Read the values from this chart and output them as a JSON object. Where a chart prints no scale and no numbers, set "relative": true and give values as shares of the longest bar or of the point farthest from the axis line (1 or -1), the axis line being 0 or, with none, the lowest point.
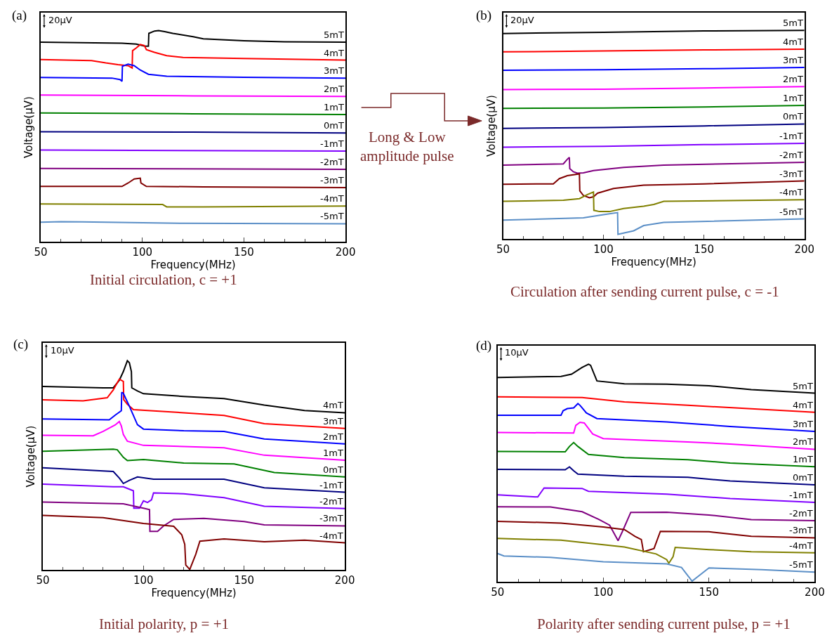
{
  "chart_data": [
    {
      "type": "line",
      "relative": true,
      "xlabel": "Frequency(MHz)",
      "ylabel": "Voltage(µV)",
      "xlim": [
        50,
        200
      ],
      "xticks": [
        50,
        100,
        150,
        200
      ],
      "annotations": [
        "(a)",
        "20µV",
        "Initial circulation, c = +1",
        "Long & Low\namplitude pulse"
      ],
      "series": [
        {
          "name": "5mT",
          "color": "#000000",
          "x": [
            50,
            90,
            97,
            101,
            103,
            103.2,
            106,
            108,
            111,
            115,
            125,
            130,
            150,
            170,
            200
          ],
          "values": [
            0.945,
            0.94,
            0.936,
            0.927,
            0.926,
            0.987,
            0.998,
            1.0,
            0.995,
            0.987,
            0.971,
            0.961,
            0.952,
            0.947,
            0.945
          ]
        },
        {
          "name": "4mT",
          "color": "#ff0000",
          "x": [
            50,
            75,
            82,
            88,
            93,
            95,
            95.2,
            97,
            99,
            101,
            102,
            106,
            112,
            120,
            150,
            200
          ],
          "values": [
            0.863,
            0.858,
            0.847,
            0.839,
            0.834,
            0.823,
            0.905,
            0.918,
            0.934,
            0.929,
            0.91,
            0.897,
            0.881,
            0.873,
            0.868,
            0.86
          ]
        },
        {
          "name": "3mT",
          "color": "#0000ff",
          "x": [
            50,
            85,
            89,
            90,
            90.2,
            93,
            96,
            99,
            103,
            112,
            150,
            200
          ],
          "values": [
            0.778,
            0.775,
            0.768,
            0.76,
            0.831,
            0.841,
            0.834,
            0.813,
            0.793,
            0.784,
            0.779,
            0.775
          ]
        },
        {
          "name": "2mT",
          "color": "#ff00ff",
          "x": [
            50,
            125,
            200
          ],
          "values": [
            0.695,
            0.691,
            0.688
          ]
        },
        {
          "name": "1mT",
          "color": "#008000",
          "x": [
            50,
            125,
            200
          ],
          "values": [
            0.61,
            0.606,
            0.602
          ]
        },
        {
          "name": "0mT",
          "color": "#000080",
          "x": [
            50,
            125,
            200
          ],
          "values": [
            0.521,
            0.519,
            0.515
          ]
        },
        {
          "name": "-1mT",
          "color": "#8000ff",
          "x": [
            50,
            200
          ],
          "values": [
            0.434,
            0.429
          ]
        },
        {
          "name": "-2mT",
          "color": "#800080",
          "x": [
            50,
            200
          ],
          "values": [
            0.347,
            0.343
          ]
        },
        {
          "name": "-3mT",
          "color": "#800000",
          "x": [
            50,
            90,
            93,
            96,
            99,
            99.3,
            102,
            130,
            200
          ],
          "values": [
            0.262,
            0.262,
            0.278,
            0.297,
            0.301,
            0.278,
            0.262,
            0.26,
            0.256
          ]
        },
        {
          "name": "-4mT",
          "color": "#808000",
          "x": [
            50,
            110,
            112,
            130,
            200
          ],
          "values": [
            0.179,
            0.176,
            0.165,
            0.165,
            0.169
          ]
        },
        {
          "name": "-5mT",
          "color": "#5b8fc7",
          "x": [
            50,
            60,
            70,
            120,
            200
          ],
          "values": [
            0.092,
            0.095,
            0.094,
            0.087,
            0.085
          ]
        }
      ]
    },
    {
      "type": "line",
      "relative": true,
      "xlabel": "Frequency(MHz)",
      "ylabel": "Voltage(µV)",
      "xlim": [
        50,
        200
      ],
      "xticks": [
        50,
        100,
        150,
        200
      ],
      "annotations": [
        "(b)",
        "20µV",
        "Circulation after sending current pulse, c = -1"
      ],
      "series": [
        {
          "name": "5mT",
          "color": "#000000",
          "x": [
            50,
            100,
            150,
            200
          ],
          "values": [
            0.985,
            0.991,
            0.997,
            1.0
          ]
        },
        {
          "name": "4mT",
          "color": "#ff0000",
          "x": [
            50,
            100,
            150,
            200
          ],
          "values": [
            0.897,
            0.901,
            0.906,
            0.91
          ]
        },
        {
          "name": "3mT",
          "color": "#0000ff",
          "x": [
            50,
            100,
            150,
            200
          ],
          "values": [
            0.809,
            0.811,
            0.816,
            0.822
          ]
        },
        {
          "name": "2mT",
          "color": "#ff00ff",
          "x": [
            50,
            100,
            150,
            200
          ],
          "values": [
            0.716,
            0.718,
            0.724,
            0.73
          ]
        },
        {
          "name": "1mT",
          "color": "#008000",
          "x": [
            50,
            100,
            150,
            200
          ],
          "values": [
            0.626,
            0.628,
            0.633,
            0.64
          ]
        },
        {
          "name": "0mT",
          "color": "#000080",
          "x": [
            50,
            100,
            150,
            200
          ],
          "values": [
            0.53,
            0.534,
            0.542,
            0.551
          ]
        },
        {
          "name": "-1mT",
          "color": "#8000ff",
          "x": [
            50,
            100,
            150,
            200
          ],
          "values": [
            0.44,
            0.444,
            0.452,
            0.458
          ]
        },
        {
          "name": "-2mT",
          "color": "#800080",
          "x": [
            50,
            80,
            82,
            83,
            83.2,
            85,
            87,
            90,
            95,
            110,
            130,
            200
          ],
          "values": [
            0.354,
            0.36,
            0.382,
            0.391,
            0.337,
            0.322,
            0.315,
            0.317,
            0.328,
            0.343,
            0.354,
            0.367
          ]
        },
        {
          "name": "-3mT",
          "color": "#800000",
          "x": [
            50,
            75,
            78,
            82,
            88,
            88.2,
            90,
            93,
            95,
            97,
            105,
            120,
            150,
            200
          ],
          "values": [
            0.262,
            0.264,
            0.289,
            0.303,
            0.312,
            0.23,
            0.208,
            0.197,
            0.202,
            0.219,
            0.242,
            0.258,
            0.264,
            0.278
          ]
        },
        {
          "name": "-4mT",
          "color": "#808000",
          "x": [
            50,
            80,
            88,
            92,
            95,
            95.2,
            98,
            103,
            110,
            120,
            125,
            130,
            200
          ],
          "values": [
            0.18,
            0.185,
            0.193,
            0.213,
            0.225,
            0.137,
            0.131,
            0.131,
            0.146,
            0.157,
            0.165,
            0.18,
            0.188
          ]
        },
        {
          "name": "-5mT",
          "color": "#5b8fc7",
          "x": [
            50,
            90,
            100,
            107,
            107.2,
            115,
            120,
            130,
            200
          ],
          "values": [
            0.09,
            0.101,
            0.116,
            0.126,
            0.022,
            0.039,
            0.064,
            0.079,
            0.096
          ]
        }
      ]
    },
    {
      "type": "line",
      "relative": true,
      "xlabel": "Frequency(MHz)",
      "ylabel": "Voltage(µV)",
      "xlim": [
        50,
        200
      ],
      "xticks": [
        50,
        100,
        150,
        200
      ],
      "annotations": [
        "(c)",
        "10µV",
        "Initial polarity, p = +1"
      ],
      "series": [
        {
          "name": "4mT",
          "color": "#000000",
          "x": [
            50,
            80,
            85,
            88,
            90,
            92,
            93,
            94,
            94.2,
            97,
            100,
            120,
            140,
            160,
            180,
            200
          ],
          "values": [
            0.877,
            0.87,
            0.87,
            0.906,
            0.948,
            1.0,
            0.99,
            0.948,
            0.87,
            0.855,
            0.842,
            0.829,
            0.819,
            0.788,
            0.762,
            0.751
          ]
        },
        {
          "name": "3mT",
          "color": "#ff0000",
          "x": [
            50,
            70,
            82,
            85,
            88,
            90,
            90.2,
            92,
            95,
            120,
            140,
            160,
            200
          ],
          "values": [
            0.813,
            0.808,
            0.823,
            0.86,
            0.912,
            0.901,
            0.813,
            0.792,
            0.766,
            0.751,
            0.738,
            0.699,
            0.676
          ]
        },
        {
          "name": "2mT",
          "color": "#0000ff",
          "x": [
            50,
            83,
            86,
            89,
            89.2,
            90,
            93,
            97,
            100,
            120,
            140,
            160,
            200
          ],
          "values": [
            0.721,
            0.717,
            0.74,
            0.761,
            0.849,
            0.844,
            0.782,
            0.694,
            0.673,
            0.665,
            0.662,
            0.626,
            0.602
          ]
        },
        {
          "name": "1mT",
          "color": "#ff00ff",
          "x": [
            50,
            75,
            80,
            86,
            88,
            89,
            90,
            92,
            100,
            140,
            160,
            200
          ],
          "values": [
            0.643,
            0.641,
            0.662,
            0.693,
            0.709,
            0.688,
            0.647,
            0.615,
            0.595,
            0.584,
            0.548,
            0.524
          ]
        },
        {
          "name": "0mT",
          "color": "#008000",
          "x": [
            50,
            85,
            87,
            90,
            92,
            100,
            120,
            145,
            165,
            200
          ],
          "values": [
            0.567,
            0.577,
            0.574,
            0.538,
            0.522,
            0.527,
            0.511,
            0.506,
            0.465,
            0.444
          ]
        },
        {
          "name": "-1mT",
          "color": "#000080",
          "x": [
            50,
            85,
            88,
            90,
            93,
            97,
            105,
            140,
            160,
            200
          ],
          "values": [
            0.488,
            0.47,
            0.439,
            0.413,
            0.428,
            0.444,
            0.433,
            0.433,
            0.392,
            0.371
          ]
        },
        {
          "name": "-2mT",
          "color": "#8000ff",
          "x": [
            50,
            85,
            90,
            95,
            95.2,
            98,
            100,
            102,
            104,
            105,
            120,
            140,
            160,
            200
          ],
          "values": [
            0.41,
            0.397,
            0.397,
            0.378,
            0.295,
            0.295,
            0.33,
            0.322,
            0.335,
            0.368,
            0.364,
            0.345,
            0.304,
            0.293
          ]
        },
        {
          "name": "-3mT",
          "color": "#800080",
          "x": [
            50,
            90,
            100,
            103,
            103.2,
            107,
            110,
            115,
            130,
            150,
            160,
            200
          ],
          "values": [
            0.324,
            0.316,
            0.295,
            0.288,
            0.184,
            0.184,
            0.21,
            0.241,
            0.246,
            0.231,
            0.215,
            0.21
          ]
        },
        {
          "name": "-4mT",
          "color": "#800000",
          "x": [
            50,
            80,
            100,
            115,
            119,
            120.5,
            121,
            123,
            126,
            128,
            140,
            160,
            180,
            200
          ],
          "values": [
            0.26,
            0.249,
            0.222,
            0.208,
            0.168,
            0.122,
            0.023,
            0.002,
            0.075,
            0.137,
            0.148,
            0.134,
            0.142,
            0.129
          ]
        }
      ]
    },
    {
      "type": "line",
      "relative": true,
      "xlim": [
        50,
        200
      ],
      "xticks": [
        50,
        100,
        150,
        200
      ],
      "annotations": [
        "(d)",
        "10µV",
        "Polarity after sending current pulse, p = +1"
      ],
      "series": [
        {
          "name": "5mT",
          "color": "#000000",
          "x": [
            50,
            80,
            85,
            90,
            93,
            94,
            97,
            110,
            130,
            150,
            170,
            200
          ],
          "values": [
            0.939,
            0.944,
            0.954,
            0.985,
            1.0,
            0.995,
            0.923,
            0.91,
            0.908,
            0.901,
            0.883,
            0.867
          ]
        },
        {
          "name": "4mT",
          "color": "#ff0000",
          "x": [
            50,
            90,
            110,
            140,
            200
          ],
          "values": [
            0.85,
            0.847,
            0.827,
            0.811,
            0.779
          ]
        },
        {
          "name": "3mT",
          "color": "#0000ff",
          "x": [
            50,
            80,
            81,
            83,
            86,
            88,
            89,
            92,
            97,
            130,
            160,
            200
          ],
          "values": [
            0.765,
            0.765,
            0.786,
            0.796,
            0.799,
            0.819,
            0.811,
            0.776,
            0.75,
            0.735,
            0.714,
            0.691
          ]
        },
        {
          "name": "2mT",
          "color": "#ff00ff",
          "x": [
            50,
            86,
            87,
            89,
            91,
            95,
            100,
            140,
            160,
            200
          ],
          "values": [
            0.686,
            0.684,
            0.719,
            0.733,
            0.73,
            0.679,
            0.658,
            0.643,
            0.633,
            0.609
          ]
        },
        {
          "name": "1mT",
          "color": "#008000",
          "x": [
            50,
            82,
            84,
            86,
            88,
            93,
            110,
            140,
            160,
            200
          ],
          "values": [
            0.599,
            0.597,
            0.622,
            0.64,
            0.622,
            0.585,
            0.571,
            0.561,
            0.546,
            0.529
          ]
        },
        {
          "name": "0mT",
          "color": "#000080",
          "x": [
            50,
            82,
            84,
            86,
            88,
            110,
            140,
            160,
            200
          ],
          "values": [
            0.517,
            0.515,
            0.528,
            0.51,
            0.495,
            0.485,
            0.48,
            0.463,
            0.446
          ]
        },
        {
          "name": "-1mT",
          "color": "#8000ff",
          "x": [
            50,
            69,
            72,
            90,
            93,
            130,
            160,
            200
          ],
          "values": [
            0.4,
            0.39,
            0.431,
            0.429,
            0.416,
            0.403,
            0.383,
            0.365
          ]
        },
        {
          "name": "-2mT",
          "color": "#800080",
          "x": [
            50,
            75,
            90,
            98,
            103,
            107,
            109,
            113,
            130,
            150,
            170,
            200
          ],
          "values": [
            0.345,
            0.344,
            0.322,
            0.286,
            0.26,
            0.189,
            0.23,
            0.319,
            0.32,
            0.307,
            0.286,
            0.281
          ]
        },
        {
          "name": "-3mT",
          "color": "#800000",
          "x": [
            50,
            80,
            100,
            110,
            115,
            118,
            119,
            124,
            127,
            150,
            170,
            200
          ],
          "values": [
            0.278,
            0.27,
            0.252,
            0.24,
            0.209,
            0.194,
            0.138,
            0.153,
            0.232,
            0.23,
            0.209,
            0.202
          ]
        },
        {
          "name": "-4mT",
          "color": "#808000",
          "x": [
            50,
            80,
            110,
            125,
            130,
            131,
            133,
            134,
            150,
            170,
            200
          ],
          "values": [
            0.199,
            0.191,
            0.16,
            0.128,
            0.102,
            0.085,
            0.115,
            0.158,
            0.148,
            0.138,
            0.133
          ]
        },
        {
          "name": "-5mT",
          "color": "#5b8fc7",
          "x": [
            50,
            53,
            75,
            100,
            130,
            137,
            142,
            147,
            150,
            175,
            200
          ],
          "values": [
            0.13,
            0.119,
            0.112,
            0.092,
            0.082,
            0.066,
            0.003,
            0.041,
            0.064,
            0.056,
            0.044
          ]
        }
      ]
    }
  ]
}
